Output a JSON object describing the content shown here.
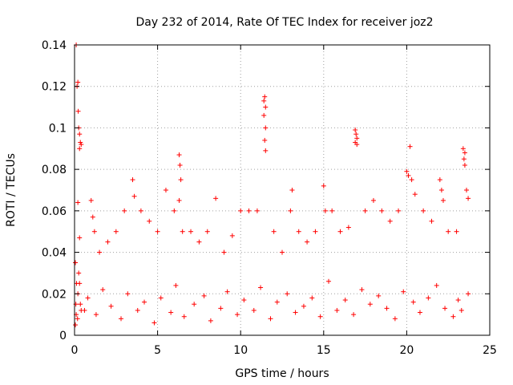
{
  "chart_data": {
    "type": "scatter",
    "title": "Day 232 of 2014, Rate Of TEC Index for receiver joz2",
    "xlabel": "GPS time / hours",
    "ylabel": "ROTI / TECUs",
    "xlim": [
      0,
      25
    ],
    "ylim": [
      0,
      0.14
    ],
    "xticks": [
      0,
      5,
      10,
      15,
      20,
      25
    ],
    "xtick_labels": [
      "0",
      "5",
      "10",
      "15",
      "20",
      "25"
    ],
    "yticks": [
      0,
      0.02,
      0.04,
      0.06,
      0.08,
      0.1,
      0.12,
      0.14
    ],
    "ytick_labels": [
      "0",
      "0.02",
      "0.04",
      "0.06",
      "0.08",
      "0.1",
      "0.12",
      "0.14"
    ],
    "grid": true,
    "marker": "+",
    "color": "#ff0000",
    "series": [
      {
        "name": "ROTI",
        "x": [
          0.05,
          0.1,
          0.15,
          0.2,
          0.22,
          0.25,
          0.3,
          0.35,
          0.4,
          0.1,
          0.2,
          0.25,
          0.3,
          0.35,
          0.4,
          0.2,
          0.3,
          0.3,
          1.0,
          1.1,
          1.2,
          1.5,
          2.0,
          2.5,
          3.0,
          3.5,
          3.6,
          4.0,
          4.5,
          5.0,
          5.5,
          6.0,
          6.3,
          6.35,
          6.4,
          6.3,
          6.5,
          7.0,
          7.5,
          8.0,
          8.5,
          9.0,
          9.5,
          10.0,
          10.5,
          11.0,
          11.4,
          11.45,
          11.5,
          11.4,
          11.5,
          11.45,
          11.5,
          12.0,
          12.5,
          13.0,
          13.1,
          13.5,
          14.0,
          14.5,
          15.0,
          15.1,
          15.5,
          16.0,
          16.5,
          16.9,
          16.95,
          17.0,
          16.9,
          17.0,
          17.5,
          18.0,
          18.5,
          19.0,
          19.5,
          20.0,
          20.1,
          20.2,
          20.3,
          20.5,
          21.0,
          21.5,
          22.0,
          22.1,
          22.2,
          22.5,
          23.0,
          23.4,
          23.5,
          23.45,
          23.5,
          23.6,
          23.7,
          0.05,
          0.08,
          0.12,
          0.18,
          0.6,
          0.8,
          1.3,
          1.7,
          2.2,
          2.8,
          3.2,
          3.8,
          4.2,
          4.8,
          5.2,
          5.8,
          6.1,
          6.6,
          7.2,
          7.8,
          8.2,
          8.8,
          9.2,
          9.8,
          10.2,
          10.8,
          11.2,
          11.8,
          12.2,
          12.8,
          13.3,
          13.8,
          14.3,
          14.8,
          15.3,
          15.8,
          16.3,
          16.8,
          17.3,
          17.8,
          18.3,
          18.8,
          19.3,
          19.8,
          20.4,
          20.8,
          21.3,
          21.8,
          22.3,
          22.8,
          23.1,
          23.3,
          23.7
        ],
        "y": [
          0.035,
          0.14,
          0.12,
          0.122,
          0.108,
          0.1,
          0.097,
          0.093,
          0.092,
          0.01,
          0.02,
          0.03,
          0.025,
          0.015,
          0.012,
          0.064,
          0.047,
          0.09,
          0.065,
          0.057,
          0.05,
          0.04,
          0.045,
          0.05,
          0.06,
          0.075,
          0.067,
          0.06,
          0.055,
          0.05,
          0.07,
          0.06,
          0.087,
          0.082,
          0.075,
          0.065,
          0.05,
          0.05,
          0.045,
          0.05,
          0.066,
          0.04,
          0.048,
          0.06,
          0.06,
          0.06,
          0.113,
          0.115,
          0.11,
          0.106,
          0.1,
          0.094,
          0.089,
          0.05,
          0.04,
          0.06,
          0.07,
          0.05,
          0.045,
          0.05,
          0.072,
          0.06,
          0.06,
          0.05,
          0.052,
          0.099,
          0.097,
          0.095,
          0.093,
          0.092,
          0.06,
          0.065,
          0.06,
          0.055,
          0.06,
          0.079,
          0.077,
          0.091,
          0.075,
          0.068,
          0.06,
          0.055,
          0.075,
          0.07,
          0.065,
          0.05,
          0.05,
          0.09,
          0.088,
          0.085,
          0.082,
          0.07,
          0.066,
          0.005,
          0.015,
          0.025,
          0.008,
          0.012,
          0.018,
          0.01,
          0.022,
          0.014,
          0.008,
          0.02,
          0.012,
          0.016,
          0.006,
          0.018,
          0.011,
          0.024,
          0.009,
          0.015,
          0.019,
          0.007,
          0.013,
          0.021,
          0.01,
          0.017,
          0.012,
          0.023,
          0.008,
          0.016,
          0.02,
          0.011,
          0.014,
          0.018,
          0.009,
          0.026,
          0.012,
          0.017,
          0.01,
          0.022,
          0.015,
          0.019,
          0.013,
          0.008,
          0.021,
          0.016,
          0.011,
          0.018,
          0.024,
          0.013,
          0.009,
          0.017,
          0.012,
          0.02
        ]
      }
    ]
  }
}
